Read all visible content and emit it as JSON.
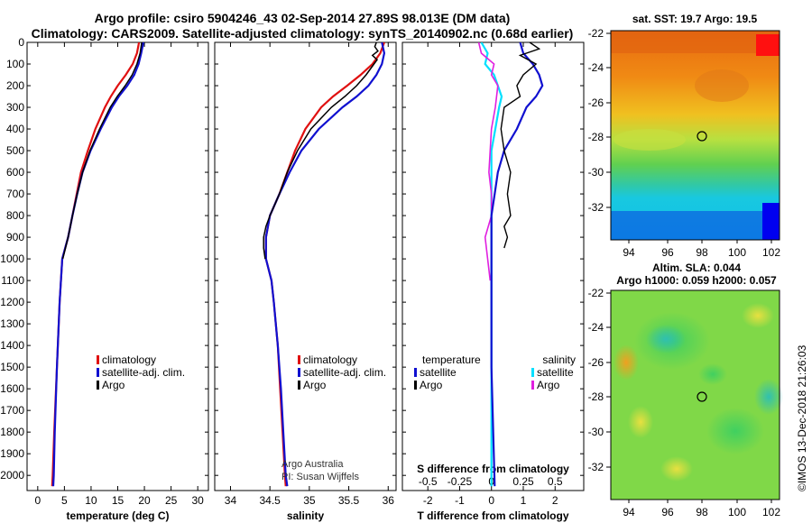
{
  "header": {
    "title_line1": "Argo profile: csiro 5904246_43 02-Sep-2014 27.89S 98.013E (DM data)",
    "title_line2": "Climatology: CARS2009. Satellite-adjusted climatology: synTS_20140902.nc (0.68d earlier)"
  },
  "colors": {
    "climatology": "#e01010",
    "satellite": "#1010d0",
    "argo": "#000000",
    "sat_salinity": "#00e0ff",
    "argo_salinity_diff": "#e020e0"
  },
  "chart_data": [
    {
      "type": "line",
      "id": "temperature",
      "xlabel": "temperature (deg C)",
      "xlim": [
        -2,
        32
      ],
      "xticks": [
        0,
        5,
        10,
        15,
        20,
        25,
        30
      ],
      "ylim": [
        0,
        2070
      ],
      "yticks": [
        0,
        100,
        200,
        300,
        400,
        500,
        600,
        700,
        800,
        900,
        1000,
        1100,
        1200,
        1300,
        1400,
        1500,
        1600,
        1700,
        1800,
        1900,
        2000
      ],
      "legend": [
        "climatology",
        "satellite-adj. clim.",
        "Argo"
      ],
      "series": [
        {
          "name": "climatology",
          "depth": [
            0,
            50,
            100,
            150,
            200,
            250,
            300,
            400,
            500,
            600,
            700,
            800,
            900,
            1000,
            1200,
            1500,
            1800,
            2000,
            2050
          ],
          "values": [
            19.0,
            18.6,
            17.8,
            16.5,
            15.0,
            13.7,
            12.6,
            10.8,
            9.4,
            8.1,
            7.3,
            6.5,
            5.7,
            4.6,
            4.1,
            3.6,
            3.1,
            2.8,
            2.7
          ]
        },
        {
          "name": "satellite-adj. clim.",
          "depth": [
            0,
            50,
            100,
            150,
            200,
            250,
            300,
            400,
            500,
            600,
            700,
            800,
            900,
            1000,
            1200,
            1500,
            1800,
            2000,
            2050
          ],
          "values": [
            19.8,
            19.4,
            18.9,
            18.1,
            16.8,
            15.2,
            13.9,
            11.8,
            9.9,
            8.4,
            7.4,
            6.5,
            5.7,
            4.6,
            4.1,
            3.6,
            3.2,
            3.0,
            2.9
          ]
        },
        {
          "name": "Argo",
          "depth": [
            0,
            50,
            100,
            150,
            200,
            250,
            300,
            400,
            500,
            600,
            700,
            800,
            900,
            1000
          ],
          "values": [
            19.5,
            19.2,
            18.6,
            17.7,
            16.4,
            14.9,
            13.6,
            11.6,
            9.8,
            8.4,
            7.4,
            6.5,
            5.7,
            4.7
          ]
        }
      ]
    },
    {
      "type": "line",
      "id": "salinity",
      "xlabel": "salinity",
      "xlim": [
        33.8,
        36.1
      ],
      "xticks": [
        34,
        34.5,
        35,
        35.5,
        36
      ],
      "xticklabels": [
        "34",
        "34.5",
        "35",
        "35.5",
        "36"
      ],
      "ylim": [
        0,
        2070
      ],
      "legend": [
        "climatology",
        "satellite-adj. clim.",
        "Argo"
      ],
      "series": [
        {
          "name": "climatology",
          "depth": [
            0,
            50,
            100,
            150,
            200,
            250,
            300,
            400,
            500,
            600,
            700,
            800,
            900,
            1000,
            1100,
            1200,
            1400,
            1600,
            1800,
            2000,
            2050
          ],
          "values": [
            35.95,
            35.9,
            35.8,
            35.65,
            35.48,
            35.3,
            35.15,
            34.95,
            34.82,
            34.72,
            34.62,
            34.5,
            34.45,
            34.45,
            34.52,
            34.55,
            34.6,
            34.63,
            34.66,
            34.69,
            34.7
          ]
        },
        {
          "name": "satellite-adj. clim.",
          "depth": [
            0,
            50,
            100,
            150,
            200,
            250,
            300,
            400,
            500,
            600,
            700,
            800,
            900,
            1000,
            1100,
            1200,
            1400,
            1600,
            1800,
            2000,
            2050
          ],
          "values": [
            35.92,
            35.95,
            35.92,
            35.85,
            35.75,
            35.6,
            35.42,
            35.12,
            34.9,
            34.75,
            34.62,
            34.5,
            34.45,
            34.45,
            34.52,
            34.55,
            34.6,
            34.64,
            34.67,
            34.7,
            34.72
          ]
        },
        {
          "name": "Argo",
          "depth": [
            0,
            20,
            40,
            60,
            80,
            100,
            150,
            200,
            250,
            300,
            400,
            500,
            600,
            700,
            800,
            850,
            900,
            950,
            1000
          ],
          "values": [
            35.85,
            35.83,
            35.87,
            35.8,
            35.86,
            35.82,
            35.72,
            35.6,
            35.45,
            35.28,
            35.02,
            34.85,
            34.72,
            34.62,
            34.5,
            34.45,
            34.42,
            34.42,
            34.44
          ]
        }
      ],
      "watermark": [
        "Argo Australia",
        "PI: Susan Wijffels"
      ]
    },
    {
      "type": "line",
      "id": "difference",
      "xlabel": "T difference from climatology",
      "top_label": "S difference from climatology",
      "xlim": [
        -2.8,
        2.9
      ],
      "xticks": [
        -2,
        -1,
        0,
        1,
        2
      ],
      "top_xticks": [
        -0.5,
        -0.25,
        0,
        0.25,
        0.5
      ],
      "top_xticklabels": [
        "-0.5",
        "-0.25",
        "0",
        "0.25",
        "0.5"
      ],
      "ylim": [
        0,
        2070
      ],
      "legend_temperature_title": "temperature",
      "legend_salinity_title": "salinity",
      "legend": [
        "satellite",
        "Argo",
        "satellite",
        "Argo"
      ],
      "series": [
        {
          "name": "T satellite",
          "depth": [
            0,
            50,
            100,
            150,
            200,
            250,
            300,
            400,
            500,
            600,
            700,
            800,
            1000,
            1500,
            2050
          ],
          "values": [
            0.9,
            1.0,
            1.3,
            1.5,
            1.6,
            1.4,
            1.1,
            0.8,
            0.4,
            0.2,
            0.1,
            0.0,
            0.0,
            0.0,
            0.1
          ]
        },
        {
          "name": "T Argo",
          "depth": [
            0,
            30,
            60,
            100,
            150,
            200,
            250,
            300,
            400,
            500,
            600,
            700,
            800,
            850,
            900,
            950
          ],
          "values": [
            1.2,
            1.5,
            0.9,
            1.4,
            1.0,
            0.8,
            0.9,
            0.4,
            0.3,
            0.4,
            0.6,
            0.5,
            0.6,
            0.4,
            0.5,
            0.4
          ]
        },
        {
          "name": "S satellite",
          "depth": [
            0,
            50,
            100,
            150,
            200,
            250,
            300,
            400,
            500,
            700,
            1000,
            1500,
            2050
          ],
          "values": [
            -0.08,
            -0.03,
            -0.05,
            0.02,
            0.05,
            0.08,
            0.06,
            0.03,
            0.0,
            0.0,
            0.0,
            0.0,
            0.0
          ]
        },
        {
          "name": "S Argo",
          "depth": [
            0,
            50,
            100,
            150,
            200,
            300,
            400,
            500,
            600,
            700,
            800,
            900,
            1000,
            1100
          ],
          "values": [
            -0.1,
            -0.08,
            0.02,
            0.0,
            0.05,
            0.03,
            0.0,
            -0.01,
            -0.02,
            0.0,
            0.0,
            -0.05,
            -0.03,
            -0.01
          ]
        }
      ]
    }
  ],
  "maps": {
    "sst": {
      "title": "sat. SST: 19.7 Argo: 19.5",
      "yticks": [
        "-22",
        "-24",
        "-26",
        "-28",
        "-30",
        "-32"
      ],
      "xticks": [
        "94",
        "96",
        "98",
        "100",
        "102"
      ]
    },
    "sla": {
      "title1": "Altim. SLA: 0.044",
      "title2": "Argo h1000: 0.059 h2000: 0.057",
      "yticks": [
        "-22",
        "-24",
        "-26",
        "-28",
        "-30",
        "-32"
      ],
      "xticks": [
        "94",
        "96",
        "98",
        "100",
        "102"
      ]
    }
  },
  "credit": "©IMOS 13-Dec-2018 21:26:03"
}
